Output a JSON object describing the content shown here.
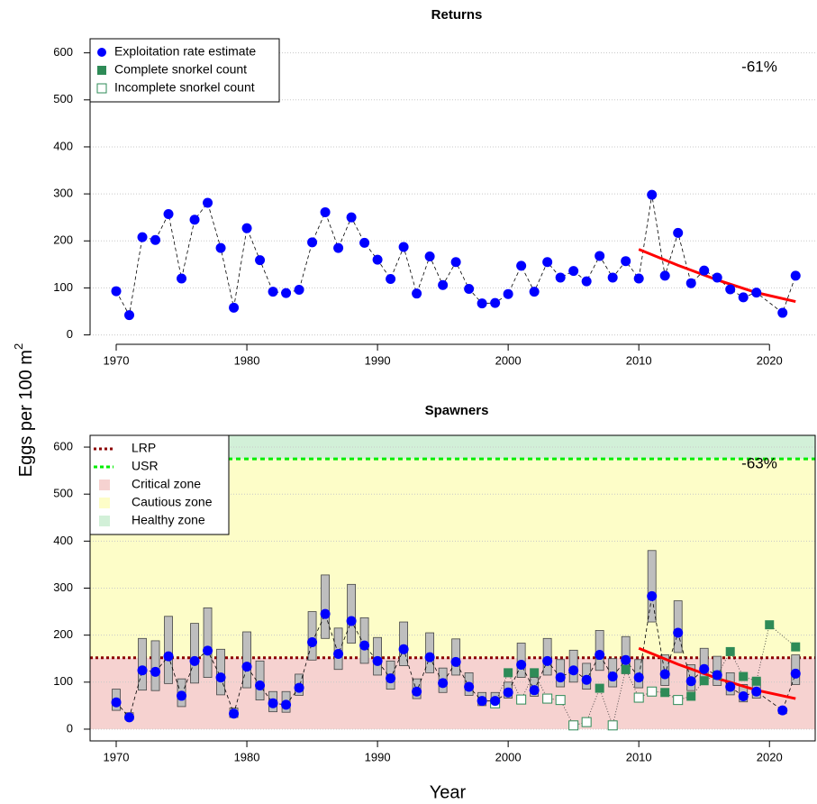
{
  "chart_data": [
    {
      "type": "scatter",
      "title": "Returns",
      "ylabel": "Eggs per 100 m",
      "ylabel_sup": "2",
      "xlim": [
        1968,
        2023.5
      ],
      "ylim": [
        -20,
        630
      ],
      "xticks": [
        1970,
        1980,
        1990,
        2000,
        2010,
        2020
      ],
      "yticks": [
        0,
        100,
        200,
        300,
        400,
        500,
        600
      ],
      "grid": true,
      "legend": "top-left",
      "annotation": "-61%",
      "series": [
        {
          "name": "Exploitation rate estimate",
          "color": "#0000ff",
          "marker": "circle",
          "line": "dashed",
          "line_color": "#000000",
          "x": [
            1970,
            1971,
            1972,
            1973,
            1974,
            1975,
            1976,
            1977,
            1978,
            1979,
            1980,
            1981,
            1982,
            1983,
            1984,
            1985,
            1986,
            1987,
            1988,
            1989,
            1990,
            1991,
            1992,
            1993,
            1994,
            1995,
            1996,
            1997,
            1998,
            1999,
            2000,
            2001,
            2002,
            2003,
            2004,
            2005,
            2006,
            2007,
            2008,
            2009,
            2010,
            2011,
            2012,
            2013,
            2014,
            2015,
            2016,
            2017,
            2018,
            2019,
            2021,
            2022
          ],
          "values": [
            93,
            42,
            208,
            202,
            257,
            120,
            245,
            281,
            185,
            58,
            227,
            159,
            92,
            89,
            96,
            197,
            261,
            185,
            250,
            196,
            160,
            119,
            187,
            88,
            167,
            106,
            155,
            98,
            67,
            68,
            87,
            147,
            92,
            155,
            122,
            136,
            114,
            168,
            122,
            157,
            120,
            298,
            126,
            217,
            110,
            137,
            122,
            97,
            80,
            90,
            47,
            126
          ]
        },
        {
          "name": "Complete snorkel count",
          "color": "#2e8b57",
          "marker": "square",
          "x": [],
          "values": []
        },
        {
          "name": "Incomplete snorkel count",
          "color": "#2e8b57",
          "marker": "open-square",
          "x": [],
          "values": []
        },
        {
          "color": "#ff0000",
          "line": "solid",
          "x": [
            2010,
            2013,
            2016,
            2019,
            2022
          ],
          "values": [
            182,
            148,
            117,
            90,
            71
          ]
        }
      ]
    },
    {
      "type": "scatter",
      "title": "Spawners",
      "xlabel": "Year",
      "xlim": [
        1968,
        2023.5
      ],
      "ylim": [
        -25,
        625
      ],
      "xticks": [
        1970,
        1980,
        1990,
        2000,
        2010,
        2020
      ],
      "yticks": [
        0,
        100,
        200,
        300,
        400,
        500,
        600
      ],
      "grid": true,
      "legend": "top-left",
      "annotation": "-63%",
      "reference_lines": [
        {
          "name": "LRP",
          "value": 152,
          "color": "#8b0000",
          "dash": "dotted"
        },
        {
          "name": "USR",
          "value": 575,
          "color": "#00ee00",
          "dash": "dashed"
        }
      ],
      "zones": [
        {
          "name": "Critical zone",
          "color": "#f6d2d0",
          "from": 0,
          "to": 152
        },
        {
          "name": "Cautious zone",
          "color": "#fdfdc8",
          "from": 152,
          "to": 575
        },
        {
          "name": "Healthy zone",
          "color": "#d2f0d8",
          "from": 575
        }
      ],
      "series": [
        {
          "color": "#0000ff",
          "marker": "circle",
          "line": "dashed",
          "line_color": "#000000",
          "range_color": "#bebebe",
          "x": [
            1970,
            1971,
            1972,
            1973,
            1974,
            1975,
            1976,
            1977,
            1978,
            1979,
            1980,
            1981,
            1982,
            1983,
            1984,
            1985,
            1986,
            1987,
            1988,
            1989,
            1990,
            1991,
            1992,
            1993,
            1994,
            1995,
            1996,
            1997,
            1998,
            1999,
            2000,
            2001,
            2002,
            2003,
            2004,
            2005,
            2006,
            2007,
            2008,
            2009,
            2010,
            2011,
            2012,
            2013,
            2014,
            2015,
            2016,
            2017,
            2018,
            2019,
            2021,
            2022
          ],
          "values": [
            57,
            25,
            125,
            122,
            155,
            71,
            145,
            167,
            110,
            33,
            133,
            93,
            55,
            52,
            88,
            185,
            245,
            160,
            230,
            178,
            145,
            108,
            170,
            80,
            153,
            98,
            143,
            90,
            60,
            60,
            78,
            137,
            83,
            145,
            110,
            125,
            105,
            158,
            112,
            147,
            110,
            283,
            117,
            205,
            102,
            128,
            115,
            90,
            70,
            80,
            40,
            118
          ],
          "low": [
            40,
            20,
            83,
            82,
            97,
            48,
            98,
            110,
            73,
            25,
            88,
            62,
            37,
            36,
            72,
            147,
            193,
            127,
            183,
            140,
            115,
            85,
            135,
            65,
            120,
            78,
            115,
            72,
            50,
            50,
            66,
            110,
            70,
            115,
            90,
            100,
            85,
            125,
            90,
            118,
            88,
            228,
            93,
            163,
            82,
            103,
            93,
            73,
            58,
            66,
            33,
            95
          ],
          "high": [
            85,
            35,
            193,
            188,
            240,
            107,
            225,
            258,
            170,
            45,
            207,
            145,
            80,
            80,
            117,
            250,
            328,
            215,
            308,
            237,
            195,
            145,
            228,
            107,
            205,
            130,
            192,
            120,
            78,
            78,
            100,
            183,
            110,
            193,
            148,
            168,
            140,
            210,
            150,
            197,
            148,
            380,
            158,
            273,
            137,
            172,
            155,
            120,
            95,
            107,
            45,
            158
          ]
        },
        {
          "color": "#2e8b57",
          "marker": "square",
          "connect": "dotted",
          "x": [
            2000,
            2002,
            2007,
            2009,
            2012,
            2014,
            2015,
            2016,
            2017,
            2018,
            2019,
            2020,
            2022
          ],
          "values": [
            120,
            120,
            87,
            127,
            78,
            70,
            103,
            115,
            165,
            112,
            102,
            222,
            175
          ]
        },
        {
          "color": "#2e8b57",
          "marker": "open-square",
          "connect": "dotted",
          "x": [
            1999,
            2001,
            2003,
            2004,
            2005,
            2006,
            2008,
            2010,
            2011,
            2013
          ],
          "values": [
            55,
            63,
            65,
            62,
            8,
            15,
            8,
            67,
            80,
            62
          ]
        },
        {
          "color": "#ff0000",
          "line": "solid",
          "x": [
            2010,
            2013,
            2016,
            2019,
            2022
          ],
          "values": [
            172,
            138,
            108,
            83,
            65
          ]
        }
      ]
    }
  ]
}
